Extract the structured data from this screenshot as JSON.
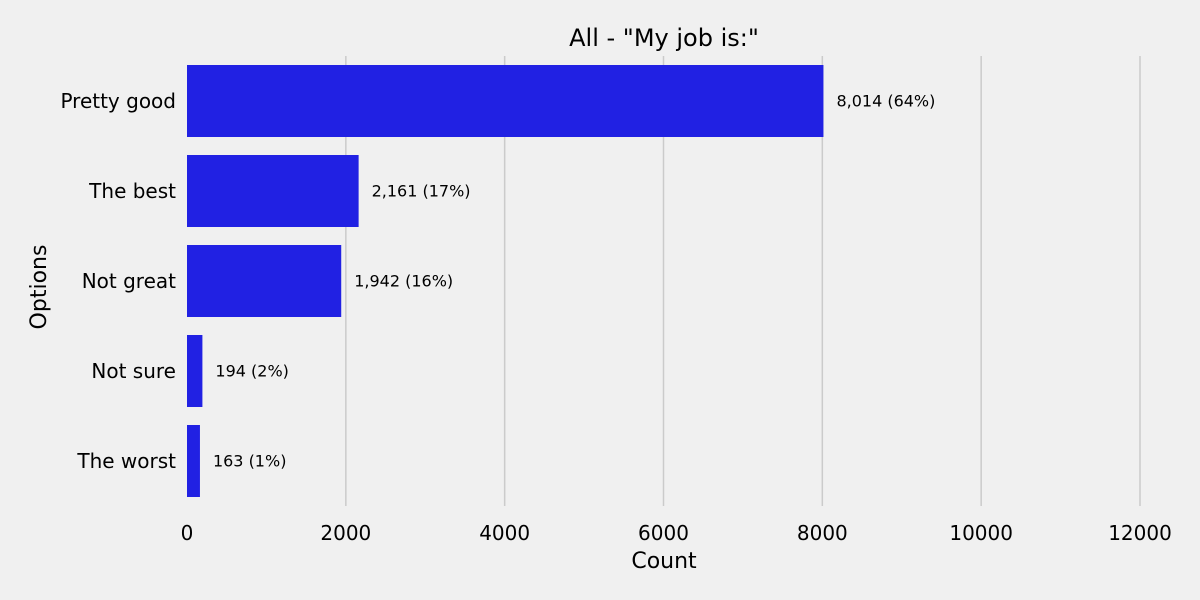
{
  "chart_data": {
    "type": "bar",
    "orientation": "horizontal",
    "title": "All - \"My job is:\"",
    "xlabel": "Count",
    "ylabel": "Options",
    "categories": [
      "Pretty good",
      "The best",
      "Not great",
      "Not sure",
      "The worst"
    ],
    "values": [
      8014,
      2161,
      1942,
      194,
      163
    ],
    "data_labels": [
      "8,014 (64%)",
      "2,161 (17%)",
      "1,942 (16%)",
      "194 (2%)",
      "163 (1%)"
    ],
    "xlim": [
      0,
      12000
    ],
    "xticks": [
      0,
      2000,
      4000,
      6000,
      8000,
      10000,
      12000
    ],
    "xtick_labels": [
      "0",
      "2000",
      "4000",
      "6000",
      "8000",
      "10000",
      "12000"
    ],
    "grid": "vertical",
    "legend": "none",
    "colors": {
      "bar": "#2121e3",
      "background": "#f0f0f0",
      "grid": "#cbcbcb",
      "text": "#000000"
    }
  }
}
